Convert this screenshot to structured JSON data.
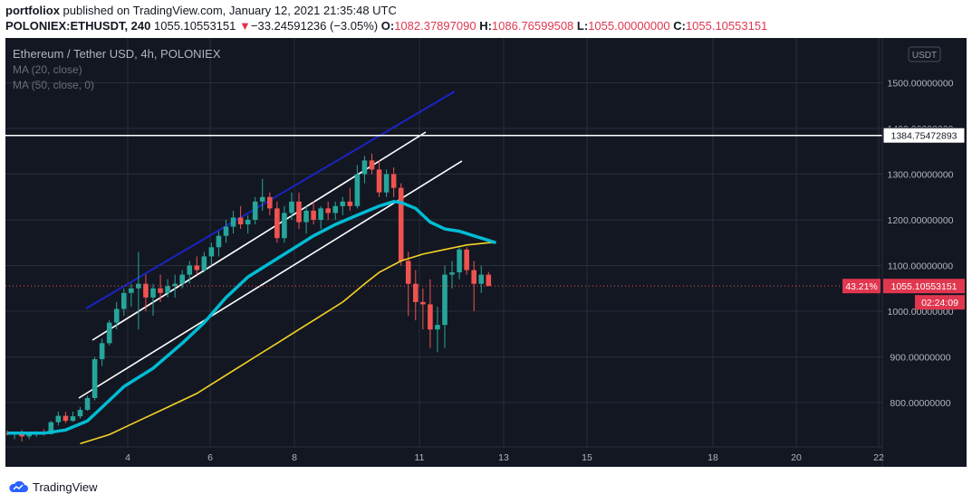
{
  "publish": {
    "user": "portfoliox",
    "text": " published on TradingView.com, January 12, 2021 21:35:48 UTC"
  },
  "ticker": {
    "symbol": "POLONIEX:ETHUSDT, 240",
    "price": "1055.10553151",
    "arrow": "▼",
    "change": "−33.24591236 (−3.05%)",
    "o_label": "O:",
    "o_value": "1082.37897090",
    "h_label": "H:",
    "h_value": "1086.76599508",
    "l_label": "L:",
    "l_value": "1055.00000000",
    "c_label": "C:",
    "c_value": "1055.10553151"
  },
  "legend": {
    "title": "Ethereum / Tether USD, 4h, POLONIEX",
    "ma20": "MA (20, close)",
    "ma50": "MA (50, close, 0)"
  },
  "currency_badge": "USDT",
  "price_axis": {
    "ticks": [
      {
        "v": 1500,
        "label": "1500.00000000"
      },
      {
        "v": 1400,
        "label": "1400.00000000"
      },
      {
        "v": 1300,
        "label": "1300.00000000"
      },
      {
        "v": 1200,
        "label": "1200.00000000"
      },
      {
        "v": 1100,
        "label": "1100.00000000"
      },
      {
        "v": 1000,
        "label": "1000.00000000"
      },
      {
        "v": 900,
        "label": "900.00000000"
      },
      {
        "v": 800,
        "label": "800.00000000"
      }
    ],
    "hline_label": "1384.75472893",
    "last_price_label": "1055.10553151",
    "percent_label": "43.21%",
    "countdown": "02:24:09"
  },
  "time_axis": {
    "ticks": [
      {
        "day": 4,
        "label": "4"
      },
      {
        "day": 6,
        "label": "6"
      },
      {
        "day": 8,
        "label": "8"
      },
      {
        "day": 11,
        "label": "11"
      },
      {
        "day": 13,
        "label": "13"
      },
      {
        "day": 15,
        "label": "15"
      },
      {
        "day": 18,
        "label": "18"
      },
      {
        "day": 20,
        "label": "20"
      },
      {
        "day": 22,
        "label": "22"
      }
    ]
  },
  "colors": {
    "background": "#131722",
    "grid": "#2a2e39",
    "up": "#26a69a",
    "down": "#ef5350",
    "ma20": "#00bcd4",
    "ma50": "#f5d324",
    "channel": "#ffffff",
    "trend_blue": "#1a24c4",
    "axis_text": "#b2b5be",
    "price_label": "#e0374f"
  },
  "chart_data": {
    "type": "candlestick",
    "symbol": "POLONIEX:ETHUSDT",
    "interval": "4h",
    "ylim": [
      710,
      1590
    ],
    "candles": [
      [
        1,
        733,
        739,
        728,
        732
      ],
      [
        2,
        732,
        737,
        720,
        735
      ],
      [
        3,
        735,
        740,
        715,
        726
      ],
      [
        4,
        726,
        735,
        720,
        731
      ],
      [
        5,
        731,
        738,
        725,
        734
      ],
      [
        6,
        734,
        742,
        728,
        731
      ],
      [
        7,
        731,
        760,
        730,
        757
      ],
      [
        8,
        757,
        780,
        750,
        771
      ],
      [
        9,
        771,
        780,
        755,
        760
      ],
      [
        10,
        760,
        780,
        758,
        770
      ],
      [
        11,
        770,
        790,
        765,
        784
      ],
      [
        12,
        784,
        815,
        782,
        810
      ],
      [
        13,
        810,
        900,
        805,
        895
      ],
      [
        14,
        895,
        940,
        880,
        930
      ],
      [
        15,
        930,
        980,
        925,
        975
      ],
      [
        16,
        975,
        1020,
        960,
        1005
      ],
      [
        17,
        1005,
        1050,
        990,
        1040
      ],
      [
        18,
        1040,
        1060,
        1010,
        1050
      ],
      [
        19,
        1050,
        1130,
        960,
        1060
      ],
      [
        20,
        1060,
        1080,
        1000,
        1030
      ],
      [
        21,
        1030,
        1060,
        990,
        1050
      ],
      [
        22,
        1050,
        1080,
        1020,
        1040
      ],
      [
        23,
        1040,
        1070,
        1030,
        1055
      ],
      [
        24,
        1055,
        1080,
        1030,
        1060
      ],
      [
        25,
        1060,
        1090,
        1050,
        1080
      ],
      [
        26,
        1080,
        1110,
        1060,
        1100
      ],
      [
        27,
        1100,
        1120,
        1080,
        1090
      ],
      [
        28,
        1090,
        1130,
        1085,
        1120
      ],
      [
        29,
        1120,
        1150,
        1100,
        1140
      ],
      [
        30,
        1140,
        1175,
        1120,
        1165
      ],
      [
        31,
        1165,
        1200,
        1150,
        1185
      ],
      [
        32,
        1185,
        1220,
        1170,
        1205
      ],
      [
        33,
        1205,
        1230,
        1180,
        1190
      ],
      [
        34,
        1190,
        1210,
        1170,
        1200
      ],
      [
        35,
        1200,
        1250,
        1190,
        1240
      ],
      [
        36,
        1240,
        1290,
        1220,
        1250
      ],
      [
        37,
        1250,
        1260,
        1210,
        1225
      ],
      [
        38,
        1225,
        1240,
        1150,
        1160
      ],
      [
        39,
        1160,
        1230,
        1150,
        1215
      ],
      [
        40,
        1215,
        1260,
        1200,
        1240
      ],
      [
        41,
        1240,
        1260,
        1180,
        1195
      ],
      [
        42,
        1195,
        1230,
        1170,
        1220
      ],
      [
        43,
        1220,
        1240,
        1190,
        1200
      ],
      [
        44,
        1200,
        1230,
        1180,
        1225
      ],
      [
        45,
        1225,
        1240,
        1200,
        1215
      ],
      [
        46,
        1215,
        1240,
        1200,
        1230
      ],
      [
        47,
        1230,
        1250,
        1210,
        1240
      ],
      [
        48,
        1240,
        1270,
        1220,
        1230
      ],
      [
        49,
        1230,
        1320,
        1225,
        1300
      ],
      [
        50,
        1300,
        1340,
        1280,
        1330
      ],
      [
        51,
        1330,
        1345,
        1300,
        1310
      ],
      [
        52,
        1310,
        1330,
        1250,
        1260
      ],
      [
        53,
        1260,
        1310,
        1250,
        1300
      ],
      [
        54,
        1300,
        1315,
        1250,
        1270
      ],
      [
        55,
        1270,
        1280,
        1100,
        1110
      ],
      [
        56,
        1110,
        1130,
        990,
        1060
      ],
      [
        57,
        1060,
        1090,
        980,
        1020
      ],
      [
        58,
        1020,
        1050,
        960,
        1015
      ],
      [
        59,
        1015,
        1070,
        920,
        960
      ],
      [
        60,
        960,
        1010,
        910,
        970
      ],
      [
        61,
        970,
        1100,
        920,
        1080
      ],
      [
        62,
        1080,
        1110,
        1050,
        1085
      ],
      [
        63,
        1085,
        1140,
        1070,
        1135
      ],
      [
        64,
        1135,
        1140,
        1080,
        1090
      ],
      [
        65,
        1090,
        1110,
        1000,
        1060
      ],
      [
        66,
        1060,
        1100,
        1040,
        1080
      ],
      [
        67,
        1080,
        1086,
        1055,
        1055
      ]
    ],
    "ma20": [
      [
        1,
        733
      ],
      [
        6,
        733
      ],
      [
        9,
        740
      ],
      [
        12,
        760
      ],
      [
        14,
        790
      ],
      [
        17,
        835
      ],
      [
        21,
        875
      ],
      [
        25,
        930
      ],
      [
        28,
        975
      ],
      [
        31,
        1030
      ],
      [
        34,
        1075
      ],
      [
        37,
        1105
      ],
      [
        40,
        1135
      ],
      [
        43,
        1165
      ],
      [
        46,
        1190
      ],
      [
        49,
        1210
      ],
      [
        52,
        1230
      ],
      [
        54,
        1240
      ],
      [
        55,
        1238
      ],
      [
        57,
        1225
      ],
      [
        59,
        1195
      ],
      [
        61,
        1180
      ],
      [
        63,
        1175
      ],
      [
        65,
        1165
      ],
      [
        67,
        1155
      ],
      [
        68,
        1150
      ]
    ],
    "ma50": [
      [
        11,
        710
      ],
      [
        15,
        730
      ],
      [
        19,
        760
      ],
      [
        23,
        790
      ],
      [
        27,
        820
      ],
      [
        31,
        860
      ],
      [
        35,
        900
      ],
      [
        38,
        930
      ],
      [
        41,
        960
      ],
      [
        44,
        990
      ],
      [
        47,
        1020
      ],
      [
        50,
        1060
      ],
      [
        52,
        1085
      ],
      [
        55,
        1110
      ],
      [
        58,
        1125
      ],
      [
        61,
        1135
      ],
      [
        64,
        1145
      ],
      [
        67,
        1150
      ],
      [
        68,
        1150
      ]
    ],
    "horizontal_line": 1384.75472893,
    "last_price": 1055.10553151
  }
}
